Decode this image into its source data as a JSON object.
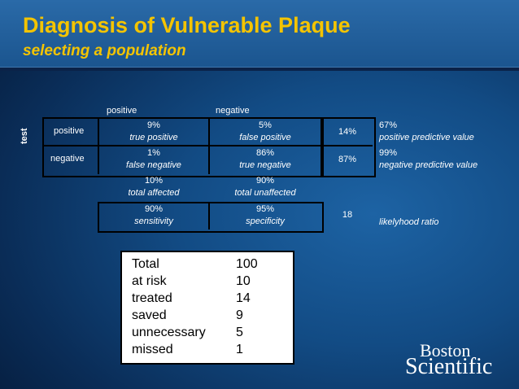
{
  "header": {
    "title": "Diagnosis of Vulnerable Plaque",
    "subtitle": "selecting a population"
  },
  "table": {
    "col_positive": "positive",
    "col_negative": "negative",
    "row_axis_label": "test",
    "row_positive": "positive",
    "row_negative": "negative",
    "tp": {
      "value": "9%",
      "label": "true positive"
    },
    "fp": {
      "value": "5%",
      "label": "false positive"
    },
    "fn": {
      "value": "1%",
      "label": "false negative"
    },
    "tn": {
      "value": "86%",
      "label": "true negative"
    },
    "affected": {
      "value": "10%",
      "label": "total affected"
    },
    "unaffected": {
      "value": "90%",
      "label": "total unaffected"
    },
    "sensitivity": {
      "value": "90%",
      "label": "sensitivity"
    },
    "specificity": {
      "value": "95%",
      "label": "specificity"
    },
    "row_pos_total": "14%",
    "row_neg_total": "87%",
    "ratio_value": "18",
    "ppv": {
      "value": "67%",
      "label": "positive predictive value"
    },
    "npv": {
      "value": "99%",
      "label": "negative predictive value"
    },
    "ratio_label": "likelyhood ratio"
  },
  "summary": [
    {
      "label": "Total",
      "value": "100"
    },
    {
      "label": "at risk",
      "value": "10"
    },
    {
      "label": "treated",
      "value": "14"
    },
    {
      "label": "saved",
      "value": "9"
    },
    {
      "label": "unnecessary",
      "value": "5"
    },
    {
      "label": "missed",
      "value": "1"
    }
  ],
  "logo": {
    "line1": "Boston",
    "line2": "Scientific"
  }
}
